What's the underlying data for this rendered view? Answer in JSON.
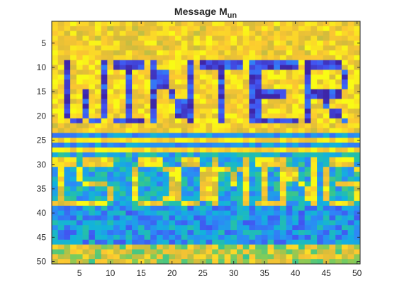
{
  "figure": {
    "title": "Message M",
    "title_subscript": "un"
  },
  "chart_data": {
    "type": "heatmap",
    "title": "Message M_un",
    "xlabel": "",
    "ylabel": "",
    "columns": 50,
    "rows": 50,
    "xlim": [
      0.5,
      50.5
    ],
    "ylim": [
      0.5,
      50.5
    ],
    "y_direction": "reversed (1 at top)",
    "x_ticks": [
      5,
      10,
      15,
      20,
      25,
      30,
      35,
      40,
      45,
      50
    ],
    "y_ticks": [
      5,
      10,
      15,
      20,
      25,
      30,
      35,
      40,
      45,
      50
    ],
    "colormap": "parula",
    "colormap_stops": [
      "#3e26a8",
      "#4253f0",
      "#2e87f7",
      "#12b2dd",
      "#2bc498",
      "#81cc59",
      "#d4bb3b",
      "#fcc632",
      "#f9fb15"
    ],
    "value_range": [
      0,
      1
    ],
    "grid": false,
    "embedded_text": [
      "WINTER",
      "IS COMING"
    ],
    "regions": [
      {
        "name": "background-top",
        "rows": [
          1,
          7
        ],
        "level": "high (yellow/orange)"
      },
      {
        "name": "word-WINTER",
        "rows": [
          9,
          21
        ],
        "letters": "low (dark blue)",
        "background": "high (yellow)"
      },
      {
        "name": "gap",
        "rows": [
          22,
          23
        ],
        "level": "high (yellow/orange)"
      },
      {
        "name": "stripe-band",
        "rows": [
          24,
          27
        ],
        "pattern": "alternating blue and yellow rows"
      },
      {
        "name": "word-IS-COMING",
        "rows": [
          28,
          38
        ],
        "letters": "high (yellow)",
        "background": "mid-low (cyan/blue)"
      },
      {
        "name": "lower-band",
        "rows": [
          39,
          46
        ],
        "level": "low-mid (blue/cyan)"
      },
      {
        "name": "background-bottom",
        "rows": [
          47,
          50
        ],
        "level": "mid-high (green/yellow)"
      }
    ]
  }
}
